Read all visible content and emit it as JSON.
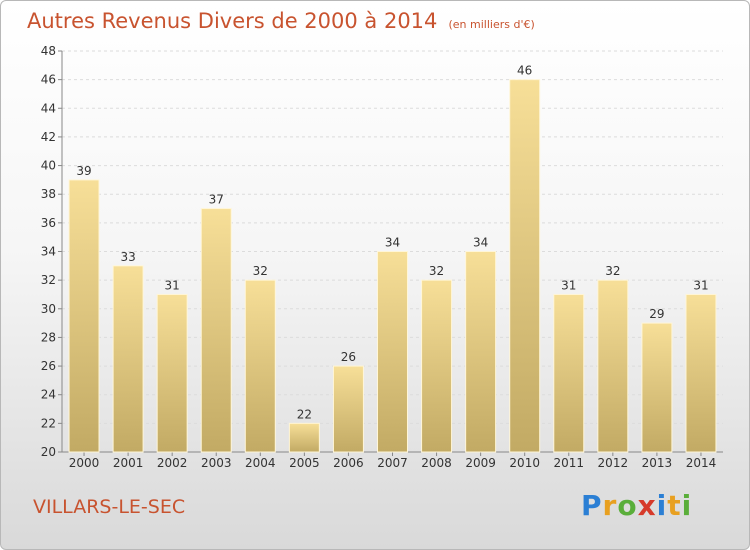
{
  "title": "Autres Revenus Divers de 2000 à 2014",
  "subtitle": "(en milliers d'€)",
  "location": "VILLARS-LE-SEC",
  "logo": {
    "letters": [
      "P",
      "r",
      "o",
      "x",
      "i",
      "t",
      "i"
    ],
    "colors": [
      "#2b7fd4",
      "#e8a020",
      "#5aae3a",
      "#d63a2a",
      "#2b7fd4",
      "#e8a020",
      "#5aae3a"
    ]
  },
  "colors": {
    "bar_top": "#f7df98",
    "bar_bottom": "#c2aa64",
    "accent": "#c8532f"
  },
  "chart_data": {
    "type": "bar",
    "title": "Autres Revenus Divers de 2000 à 2014",
    "subtitle": "(en milliers d'€)",
    "categories": [
      "2000",
      "2001",
      "2002",
      "2003",
      "2004",
      "2005",
      "2006",
      "2007",
      "2008",
      "2009",
      "2010",
      "2011",
      "2012",
      "2013",
      "2014"
    ],
    "values": [
      39,
      33,
      31,
      37,
      32,
      22,
      26,
      34,
      32,
      34,
      46,
      31,
      32,
      29,
      31
    ],
    "ylim": [
      20,
      48
    ],
    "yticks": [
      20,
      22,
      24,
      26,
      28,
      30,
      32,
      34,
      36,
      38,
      40,
      42,
      44,
      46,
      48
    ],
    "grid": true,
    "data_labels": true
  }
}
